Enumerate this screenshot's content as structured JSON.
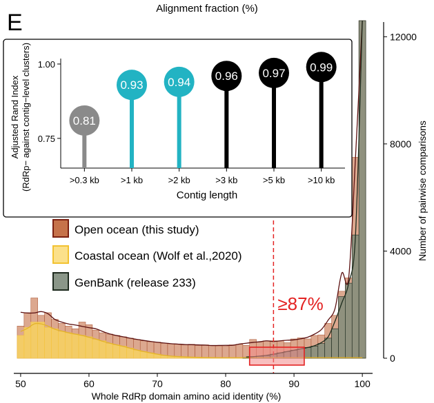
{
  "panel_label": "E",
  "chart_data": [
    {
      "type": "bar",
      "role": "main-histogram",
      "title_top": "Alignment fraction (%)",
      "xlabel": "Whole RdRp domain amino acid identity (%)",
      "ylabel": "Number of pairwise comparisons",
      "xlim": [
        49,
        101.5
      ],
      "ylim": [
        0,
        12600
      ],
      "xticks": [
        50,
        60,
        70,
        80,
        90,
        100
      ],
      "yticks": [
        0,
        4000,
        8000,
        12000
      ],
      "bin_width": 1,
      "legend": "top-left, below inset",
      "series": [
        {
          "name": "Open ocean (this study)",
          "color": "#c6724a",
          "x": [
            50,
            51,
            52,
            53,
            54,
            55,
            56,
            57,
            58,
            59,
            60,
            61,
            62,
            63,
            64,
            65,
            66,
            67,
            68,
            69,
            70,
            71,
            72,
            73,
            74,
            75,
            76,
            77,
            78,
            79,
            80,
            81,
            82,
            83,
            84,
            85,
            86,
            87,
            88,
            89,
            90,
            91,
            92,
            93,
            94,
            95,
            96,
            97,
            98,
            99,
            100
          ],
          "values": [
            1200,
            1700,
            2250,
            1600,
            1700,
            1450,
            1300,
            1200,
            1100,
            1350,
            1250,
            1050,
            950,
            900,
            850,
            800,
            750,
            700,
            650,
            620,
            600,
            560,
            540,
            520,
            500,
            520,
            480,
            500,
            480,
            460,
            450,
            500,
            520,
            480,
            700,
            600,
            650,
            650,
            650,
            580,
            720,
            760,
            720,
            850,
            870,
            1300,
            1600,
            2500,
            3000,
            7500,
            12600
          ]
        },
        {
          "name": "Coastal ocean (Wolf et al.,2020)",
          "color": "#f9d45c",
          "x": [
            50,
            51,
            52,
            53,
            54,
            55,
            56,
            57,
            58,
            59,
            60,
            61,
            62,
            63,
            64,
            65,
            66,
            67,
            68,
            69,
            70,
            71,
            72,
            73,
            74,
            75,
            76,
            77,
            78,
            79,
            80,
            81,
            82,
            83,
            84,
            85,
            86,
            87,
            88,
            89,
            90,
            91,
            92,
            93,
            94,
            95,
            96,
            97,
            98,
            99,
            100
          ],
          "values": [
            850,
            1150,
            1350,
            1350,
            1150,
            1100,
            1000,
            950,
            900,
            850,
            800,
            700,
            650,
            550,
            500,
            450,
            380,
            300,
            250,
            200,
            150,
            100,
            80,
            60,
            50,
            40,
            30,
            30,
            20,
            20,
            20,
            20,
            20,
            20,
            20,
            20,
            20,
            20,
            20,
            20,
            20,
            20,
            20,
            20,
            20,
            20,
            20,
            20,
            20,
            20,
            20
          ]
        },
        {
          "name": "GenBank (release 233)",
          "color": "#7a8a7a",
          "x": [
            83,
            84,
            85,
            86,
            87,
            88,
            89,
            90,
            91,
            92,
            93,
            94,
            95,
            96,
            97,
            98,
            99,
            100
          ],
          "values": [
            30,
            60,
            80,
            100,
            150,
            200,
            250,
            300,
            350,
            400,
            450,
            550,
            750,
            1100,
            2300,
            2800,
            4600,
            12600
          ]
        }
      ],
      "annotation": {
        "text": "≥87%",
        "x": 87,
        "color": "#e32222",
        "highlight_range": [
          84,
          92
        ]
      }
    },
    {
      "type": "lollipop",
      "role": "inset",
      "xlabel": "Contig length",
      "ylabel": "Adjusted Rand Index\n(RdRp− against contig−level clusters)",
      "ylabel_line1": "Adjusted Rand Index",
      "ylabel_line2": "(RdRp− against contig−level clusters)",
      "ylim": [
        0.65,
        1.03
      ],
      "yticks": [
        "0.75",
        "1.00"
      ],
      "categories": [
        ">0.3 kb",
        ">1 kb",
        ">2 kb",
        ">3 kb",
        ">5 kb",
        ">10 kb"
      ],
      "values": [
        0.81,
        0.93,
        0.94,
        0.96,
        0.97,
        0.99
      ],
      "labels": [
        "0.81",
        "0.93",
        "0.94",
        "0.96",
        "0.97",
        "0.99"
      ],
      "colors": [
        "#8a8a8a",
        "#22b3c3",
        "#22b3c3",
        "#000000",
        "#000000",
        "#000000"
      ]
    }
  ]
}
